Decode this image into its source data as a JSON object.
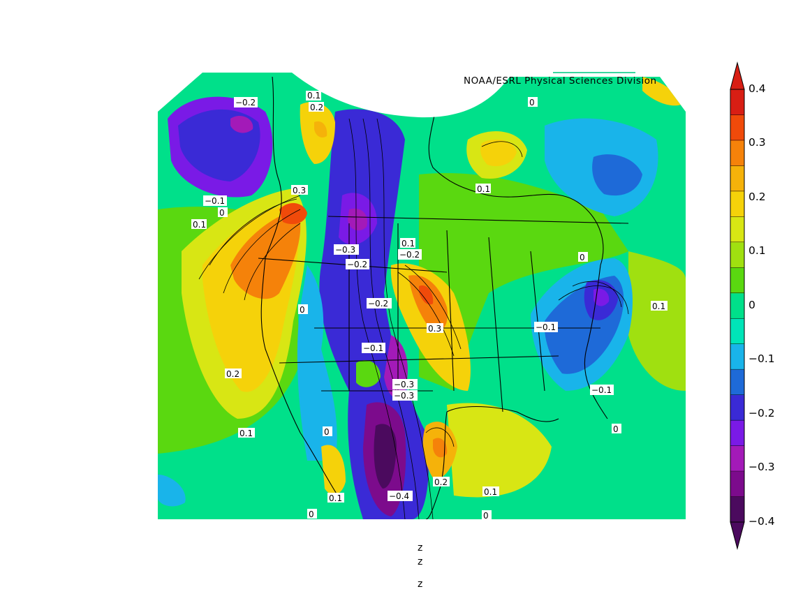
{
  "credit": "NOAA/ESRL Physical Sciences Division",
  "footer_lines": [
    "z",
    "z",
    "z"
  ],
  "colorbar": {
    "labels": [
      "0.4",
      "0.3",
      "0.2",
      "0.1",
      "0",
      "−0.1",
      "−0.2",
      "−0.3",
      "−0.4"
    ],
    "colors": [
      "#4b0a5e",
      "#7c0b8c",
      "#a31ab8",
      "#7a1ae6",
      "#3a2ad6",
      "#1e6ad8",
      "#19b4ea",
      "#00e5b8",
      "#00e08a",
      "#5ad810",
      "#a0e010",
      "#d8e614",
      "#f5d20a",
      "#f5b20a",
      "#f5820a",
      "#f04a0a",
      "#d81e14"
    ],
    "top_arrow_color": "#d81e14",
    "bottom_arrow_color": "#4b0a5e"
  },
  "contour_labels": [
    {
      "text": "−0.2"
    },
    {
      "text": "0.1"
    },
    {
      "text": "0.2"
    },
    {
      "text": "0"
    },
    {
      "text": "−0.1"
    },
    {
      "text": "0"
    },
    {
      "text": "0.1"
    },
    {
      "text": "0.3"
    },
    {
      "text": "0.1"
    },
    {
      "text": "−0.3"
    },
    {
      "text": "−0.2"
    },
    {
      "text": "0.1"
    },
    {
      "text": "−0.2"
    },
    {
      "text": "0"
    },
    {
      "text": "−0.2"
    },
    {
      "text": "0"
    },
    {
      "text": "0.3"
    },
    {
      "text": "−0.1"
    },
    {
      "text": "0.1"
    },
    {
      "text": "−0.1"
    },
    {
      "text": "0.2"
    },
    {
      "text": "−0.3"
    },
    {
      "text": "−0.3"
    },
    {
      "text": "−0.1"
    },
    {
      "text": "0.1"
    },
    {
      "text": "0"
    },
    {
      "text": "0"
    },
    {
      "text": "0.2"
    },
    {
      "text": "0.1"
    },
    {
      "text": "−0.4"
    },
    {
      "text": "0.1"
    },
    {
      "text": "0"
    },
    {
      "text": "0"
    }
  ]
}
